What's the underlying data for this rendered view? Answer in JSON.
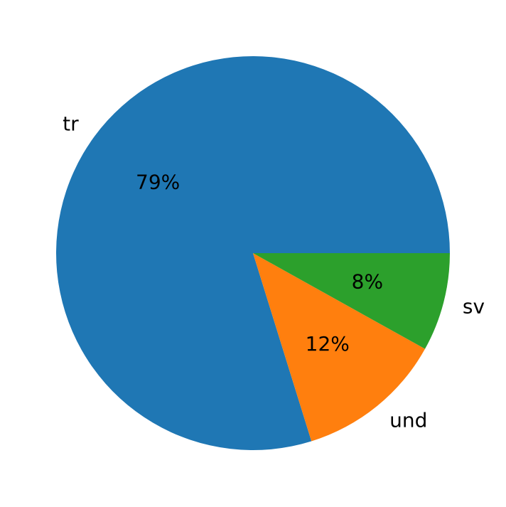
{
  "chart_data": {
    "type": "pie",
    "categories": [
      "tr",
      "und",
      "sv"
    ],
    "values": [
      79,
      12,
      8
    ],
    "value_labels": [
      "79%",
      "12%",
      "8%"
    ],
    "colors": [
      "#1f77b4",
      "#ff7f0e",
      "#2ca02c"
    ],
    "start_angle": 0,
    "counterclock": true
  }
}
